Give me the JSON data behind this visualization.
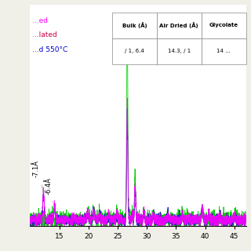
{
  "xlim": [
    10,
    47
  ],
  "ylim": [
    -30,
    1750
  ],
  "bg_color": "#f0efe8",
  "plot_bg": "#ffffff",
  "legend_labels": [
    "...ed",
    "...lated",
    "...d 550°C"
  ],
  "legend_colors": [
    "#ff00ff",
    "#cc0066",
    "#0000bb"
  ],
  "legend_color_heat": "#00bb00",
  "line_colors": [
    "#ff00ff",
    "#3333cc",
    "#00bb00"
  ],
  "annotation_71": "-7.1Å",
  "annotation_64": "-6.4Å",
  "table_cols": [
    "Bulk (Å)",
    "Air Dried (Å)",
    "Glycolate"
  ],
  "table_row": [
    "/ 1, 6.4",
    "14.3, / 1",
    "14 ..."
  ],
  "xticks": [
    15,
    20,
    25,
    30,
    35,
    40,
    45
  ]
}
